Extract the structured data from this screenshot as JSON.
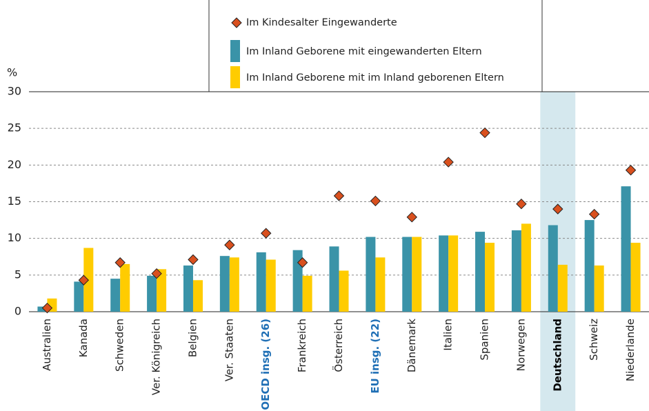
{
  "chart_data": {
    "type": "bar",
    "y_label": "%",
    "categories": [
      "Australien",
      "Kanada",
      "Schweden",
      "Ver. Königreich",
      "Belgien",
      "Ver. Staaten",
      "OECD insg. (26)",
      "Frankreich",
      "Österreich",
      "EU insg. (22)",
      "Dänemark",
      "Italien",
      "Spanien",
      "Norwegen",
      "Deutschland",
      "Schweiz",
      "Niederlande"
    ],
    "category_label_colors": [
      "#222222",
      "#222222",
      "#222222",
      "#222222",
      "#222222",
      "#222222",
      "#1f6fb5",
      "#222222",
      "#222222",
      "#1f6fb5",
      "#222222",
      "#222222",
      "#222222",
      "#222222",
      "#000000",
      "#222222",
      "#222222"
    ],
    "bold_categories": [
      6,
      9,
      14
    ],
    "highlight_categories": [
      14
    ],
    "highlight_color": "#d5e8ee",
    "series": [
      {
        "name": "Im Kindesalter Eingewanderte",
        "marker": "diamond",
        "color": "#d9501e",
        "values": [
          0.5,
          4.3,
          6.7,
          5.2,
          7.1,
          9.1,
          10.7,
          6.7,
          15.8,
          15.1,
          12.9,
          20.4,
          24.4,
          14.7,
          14.0,
          13.3,
          19.3
        ]
      },
      {
        "name": "Im Inland Geborene mit eingewanderten Eltern",
        "marker": "bar",
        "color": "#3a93a8",
        "values": [
          0.7,
          4.1,
          4.5,
          4.9,
          6.3,
          7.6,
          8.1,
          8.4,
          8.9,
          10.2,
          10.2,
          10.4,
          10.9,
          11.1,
          11.8,
          12.5,
          17.1
        ]
      },
      {
        "name": "Im Inland Geborene mit im Inland geborenen Eltern",
        "marker": "bar",
        "color": "#ffcc00",
        "values": [
          1.8,
          8.7,
          6.5,
          5.8,
          4.3,
          7.4,
          7.1,
          4.9,
          5.6,
          7.4,
          10.2,
          10.4,
          9.4,
          12.0,
          6.4,
          6.3,
          9.4
        ]
      }
    ],
    "ylim": [
      0,
      30
    ],
    "yticks": [
      0,
      5,
      10,
      15,
      20,
      25,
      30
    ],
    "grid": true
  }
}
